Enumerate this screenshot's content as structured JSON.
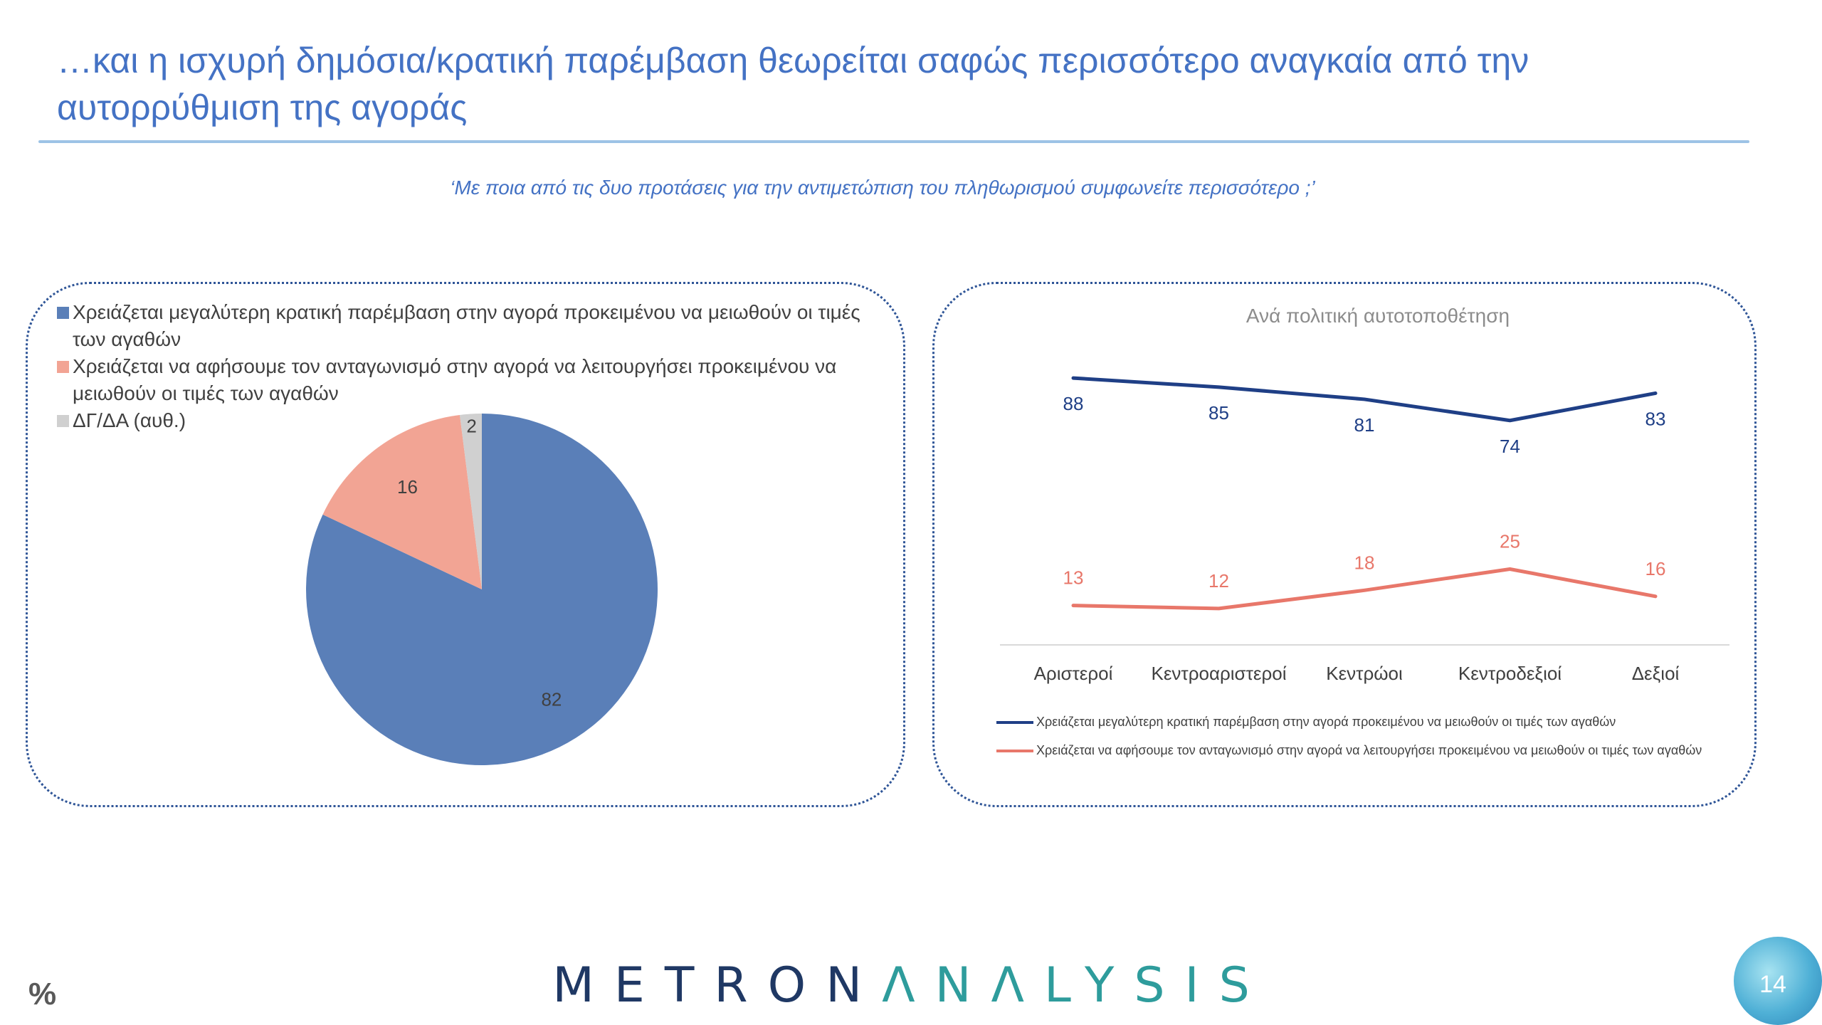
{
  "title": "…και η ισχυρή δημόσια/κρατική παρέμβαση θεωρείται σαφώς περισσότερο αναγκαία από την αυτορρύθμιση της αγοράς",
  "question": "‘Με ποια από τις δυο προτάσεις για την αντιμετώπιση του πληθωρισμού συμφωνείτε περισσότερο ;’",
  "footer": {
    "percent_sign": "%",
    "logo_part1": "METRON",
    "logo_part2": "ΛNΛLYSIS",
    "page_number": "14"
  },
  "colors": {
    "intervention": "#5a7fb8",
    "competition": "#f2a494",
    "dk": "#d0d0d0",
    "line_intervention": "#1f3f86",
    "line_competition": "#e8776a"
  },
  "chart_data": [
    {
      "type": "pie",
      "slices": [
        {
          "label": "Χρειάζεται μεγαλύτερη κρατική παρέμβαση στην αγορά προκειμένου να μειωθούν οι τιμές των αγαθών",
          "value": 82
        },
        {
          "label": "Χρειάζεται να αφήσουμε τον ανταγωνισμό στην αγορά να λειτουργήσει προκειμένου να μειωθούν οι τιμές των αγαθών",
          "value": 16
        },
        {
          "label": "ΔΓ/ΔΑ (αυθ.)",
          "value": 2
        }
      ],
      "legend_position": "top-left"
    },
    {
      "type": "line",
      "title": "Ανά πολιτική αυτοτοποθέτηση",
      "categories": [
        "Αριστεροί",
        "Κεντροαριστεροί",
        "Κεντρώοι",
        "Κεντροδεξιοί",
        "Δεξιοί"
      ],
      "series": [
        {
          "name": "Χρειάζεται μεγαλύτερη κρατική παρέμβαση στην αγορά προκειμένου να μειωθούν οι τιμές των αγαθών",
          "values": [
            88,
            85,
            81,
            74,
            83
          ]
        },
        {
          "name": "Χρειάζεται να αφήσουμε τον ανταγωνισμό στην αγορά να λειτουργήσει προκειμένου να μειωθούν οι τιμές των αγαθών",
          "values": [
            13,
            12,
            18,
            25,
            16
          ]
        }
      ],
      "ylim": [
        0,
        100
      ],
      "grid": false,
      "legend_position": "bottom"
    }
  ]
}
